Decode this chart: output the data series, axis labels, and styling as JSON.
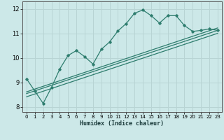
{
  "xlabel": "Humidex (Indice chaleur)",
  "bg_color": "#cce8e8",
  "grid_color": "#b8d4d4",
  "line_color": "#2e7d6e",
  "xlim": [
    -0.5,
    23.5
  ],
  "ylim": [
    7.8,
    12.3
  ],
  "yticks": [
    8,
    9,
    10,
    11,
    12
  ],
  "xticks": [
    0,
    1,
    2,
    3,
    4,
    5,
    6,
    7,
    8,
    9,
    10,
    11,
    12,
    13,
    14,
    15,
    16,
    17,
    18,
    19,
    20,
    21,
    22,
    23
  ],
  "main_x": [
    0,
    1,
    2,
    3,
    4,
    5,
    6,
    7,
    8,
    9,
    10,
    11,
    12,
    13,
    14,
    15,
    16,
    17,
    18,
    19,
    20,
    21,
    22,
    23
  ],
  "main_y": [
    9.15,
    8.65,
    8.15,
    8.8,
    9.55,
    10.1,
    10.3,
    10.05,
    9.75,
    10.35,
    10.65,
    11.1,
    11.4,
    11.82,
    11.95,
    11.72,
    11.42,
    11.72,
    11.72,
    11.32,
    11.08,
    11.12,
    11.18,
    11.12
  ],
  "line2_x": [
    0,
    23
  ],
  "line2_y": [
    8.55,
    11.12
  ],
  "line3_x": [
    0,
    23
  ],
  "line3_y": [
    8.42,
    11.0
  ],
  "line4_x": [
    0,
    23
  ],
  "line4_y": [
    8.62,
    11.22
  ]
}
